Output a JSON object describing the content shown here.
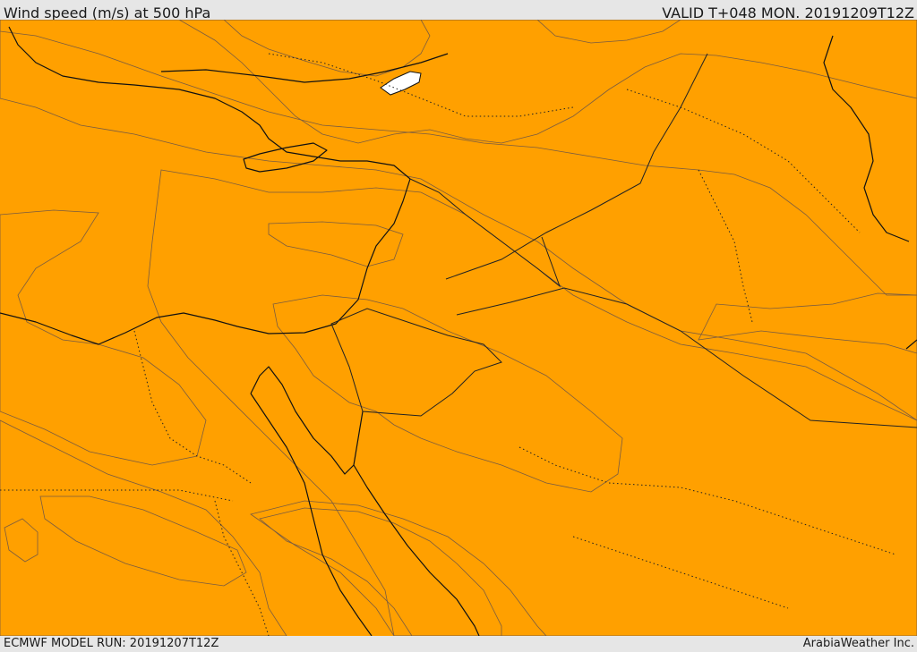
{
  "header": {
    "title": "Wind speed (m/s) at 500 hPa",
    "valid": "VALID T+048 MON. 20191209T12Z"
  },
  "footer": {
    "model_run": "ECMWF MODEL RUN: 20191207T12Z",
    "credit": "ArabiaWeather Inc."
  },
  "palette": {
    "background": "#e6e6e6",
    "peach": "#fcd9a6",
    "yellow": "#ffff00",
    "yellow_gold": "#ffdc00",
    "gold": "#ffbe00",
    "orange_light": "#ffa000",
    "orange": "#ff8200",
    "orange_dark": "#ff6400",
    "lake": "#ffffff"
  }
}
